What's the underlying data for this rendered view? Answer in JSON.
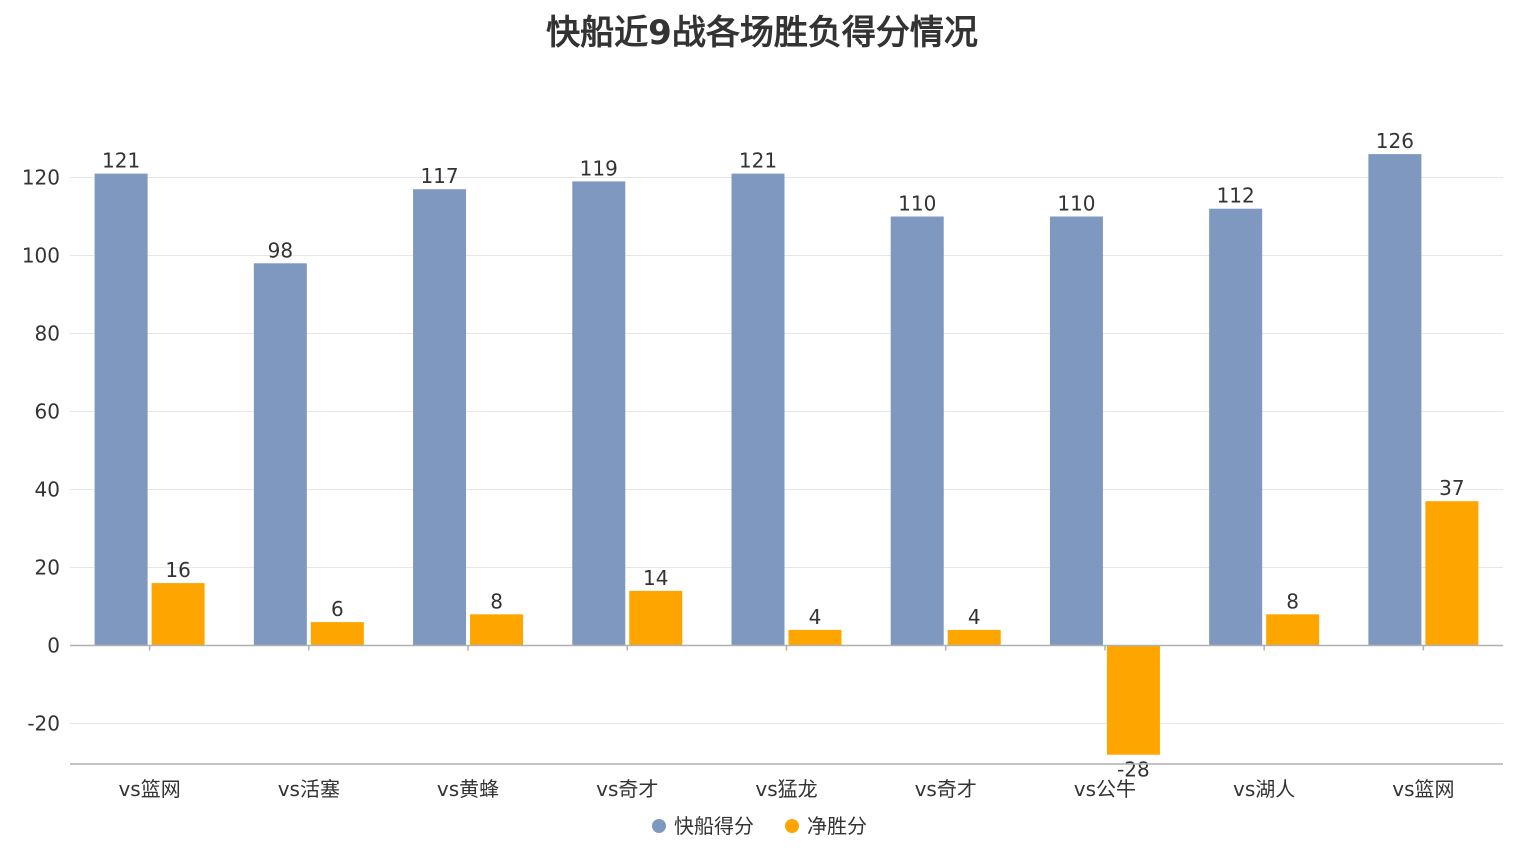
{
  "chart_data": {
    "type": "bar",
    "title": "快船近9战各场胜负得分情况",
    "categories": [
      "vs篮网",
      "vs活塞",
      "vs黄蜂",
      "vs奇才",
      "vs猛龙",
      "vs奇才",
      "vs公牛",
      "vs湖人",
      "vs篮网"
    ],
    "series": [
      {
        "name": "快船得分",
        "color": "#7f98c0",
        "values": [
          121,
          98,
          117,
          119,
          121,
          110,
          110,
          112,
          126
        ]
      },
      {
        "name": "净胜分",
        "color": "#ffa500",
        "values": [
          16,
          6,
          8,
          14,
          4,
          4,
          -28,
          8,
          37
        ]
      }
    ],
    "yticks": [
      -20,
      0,
      20,
      40,
      60,
      80,
      100,
      120
    ],
    "ylim": [
      -30,
      120
    ],
    "grid": true,
    "legend": "bottom-center",
    "data_labels": true
  }
}
